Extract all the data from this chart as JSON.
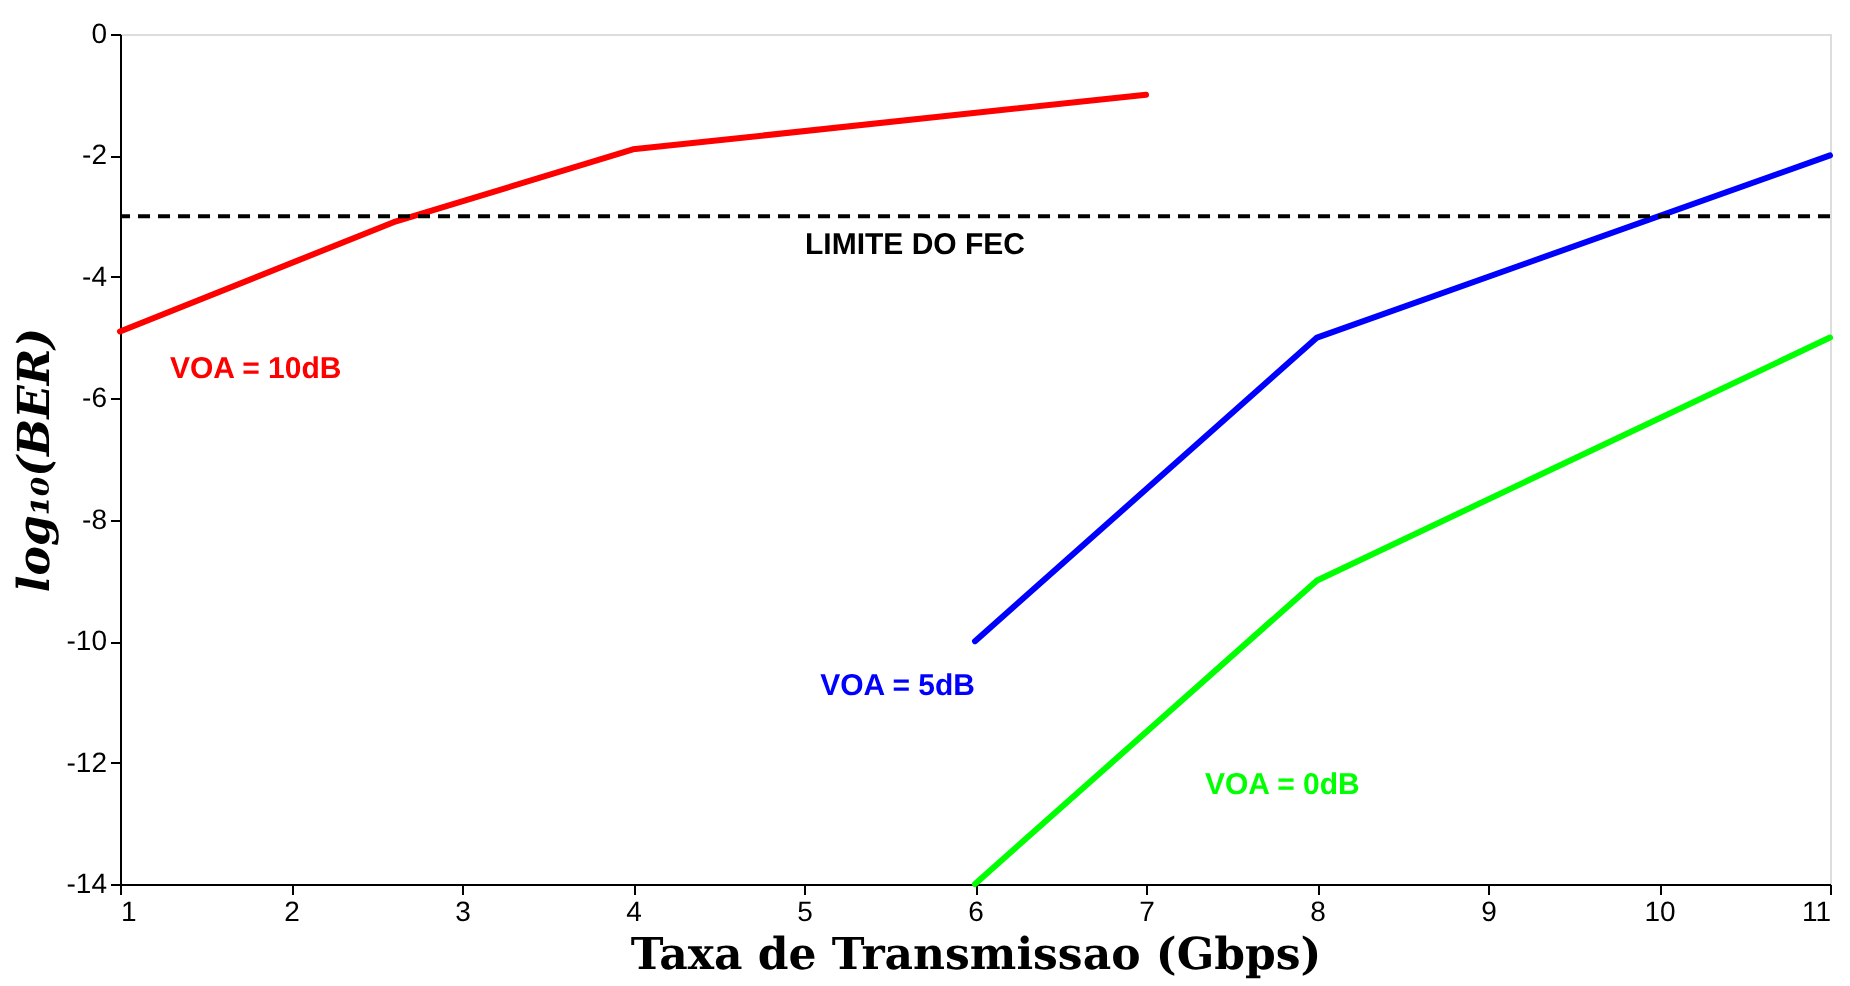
{
  "chart_data": {
    "type": "line",
    "xlabel": "Taxa de Transmissao (Gbps)",
    "ylabel": "log₁₀(BER)",
    "series": [
      {
        "name": "VOA = 10dB",
        "color": "#ff0000",
        "x": [
          1,
          2.6,
          4,
          7
        ],
        "values": [
          -4.9,
          -3.1,
          -1.9,
          -1.0
        ]
      },
      {
        "name": "VOA = 5dB",
        "color": "#0000ff",
        "x": [
          6,
          8,
          11
        ],
        "values": [
          -10,
          -5,
          -2
        ]
      },
      {
        "name": "VOA = 0dB",
        "color": "#00ff00",
        "x": [
          6,
          8,
          11
        ],
        "values": [
          -14,
          -9,
          -5
        ]
      }
    ],
    "xlim": [
      1,
      11
    ],
    "xticks": [
      1,
      2,
      3,
      4,
      5,
      6,
      7,
      8,
      9,
      10,
      11
    ],
    "ylim": [
      -14,
      0
    ],
    "yticks": [
      -14,
      -12,
      -10,
      -8,
      -6,
      -4,
      -2,
      0
    ],
    "ref_lines": [
      {
        "axis": "y",
        "value": -3,
        "label": "LIMITE DO FEC",
        "color": "#000000",
        "line_style": "dashed"
      }
    ],
    "grid": false,
    "marker": "none",
    "line_style": "solid"
  }
}
